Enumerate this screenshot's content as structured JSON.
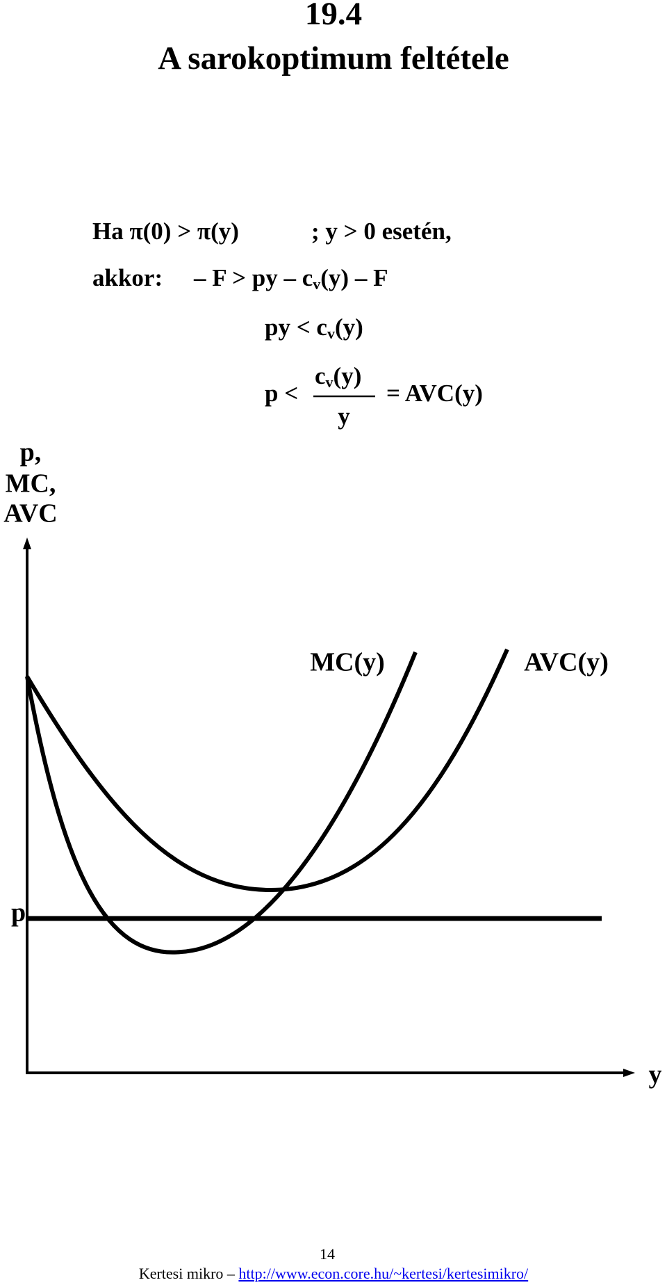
{
  "header": {
    "number": "19.4",
    "title": "A sarokoptimum feltétele"
  },
  "equations": {
    "line1": {
      "left": "Ha π(0) > π(y)",
      "right": "; y > 0 esetén,"
    },
    "line2": {
      "lead": "akkor:",
      "a": "– F > py – c",
      "sub": "v",
      "b": "(y) – F"
    },
    "line3": {
      "a": "py < c",
      "sub": "v",
      "b": "(y)"
    },
    "line4": {
      "lead": "p <",
      "num_a": "c",
      "num_sub": "v",
      "num_b": "(y)",
      "den": "y",
      "rhs": "= AVC(y)"
    }
  },
  "diagram": {
    "y_axis_label": [
      "p,",
      "MC,",
      "AVC"
    ],
    "x_axis_label": "y",
    "price_label": "p",
    "mc_label": "MC(y)",
    "avc_label": "AVC(y)"
  },
  "footer": {
    "page": "14",
    "text": "Kertesi mikro –",
    "link": "http://www.econ.core.hu/~kertesi/kertesimikro/"
  }
}
